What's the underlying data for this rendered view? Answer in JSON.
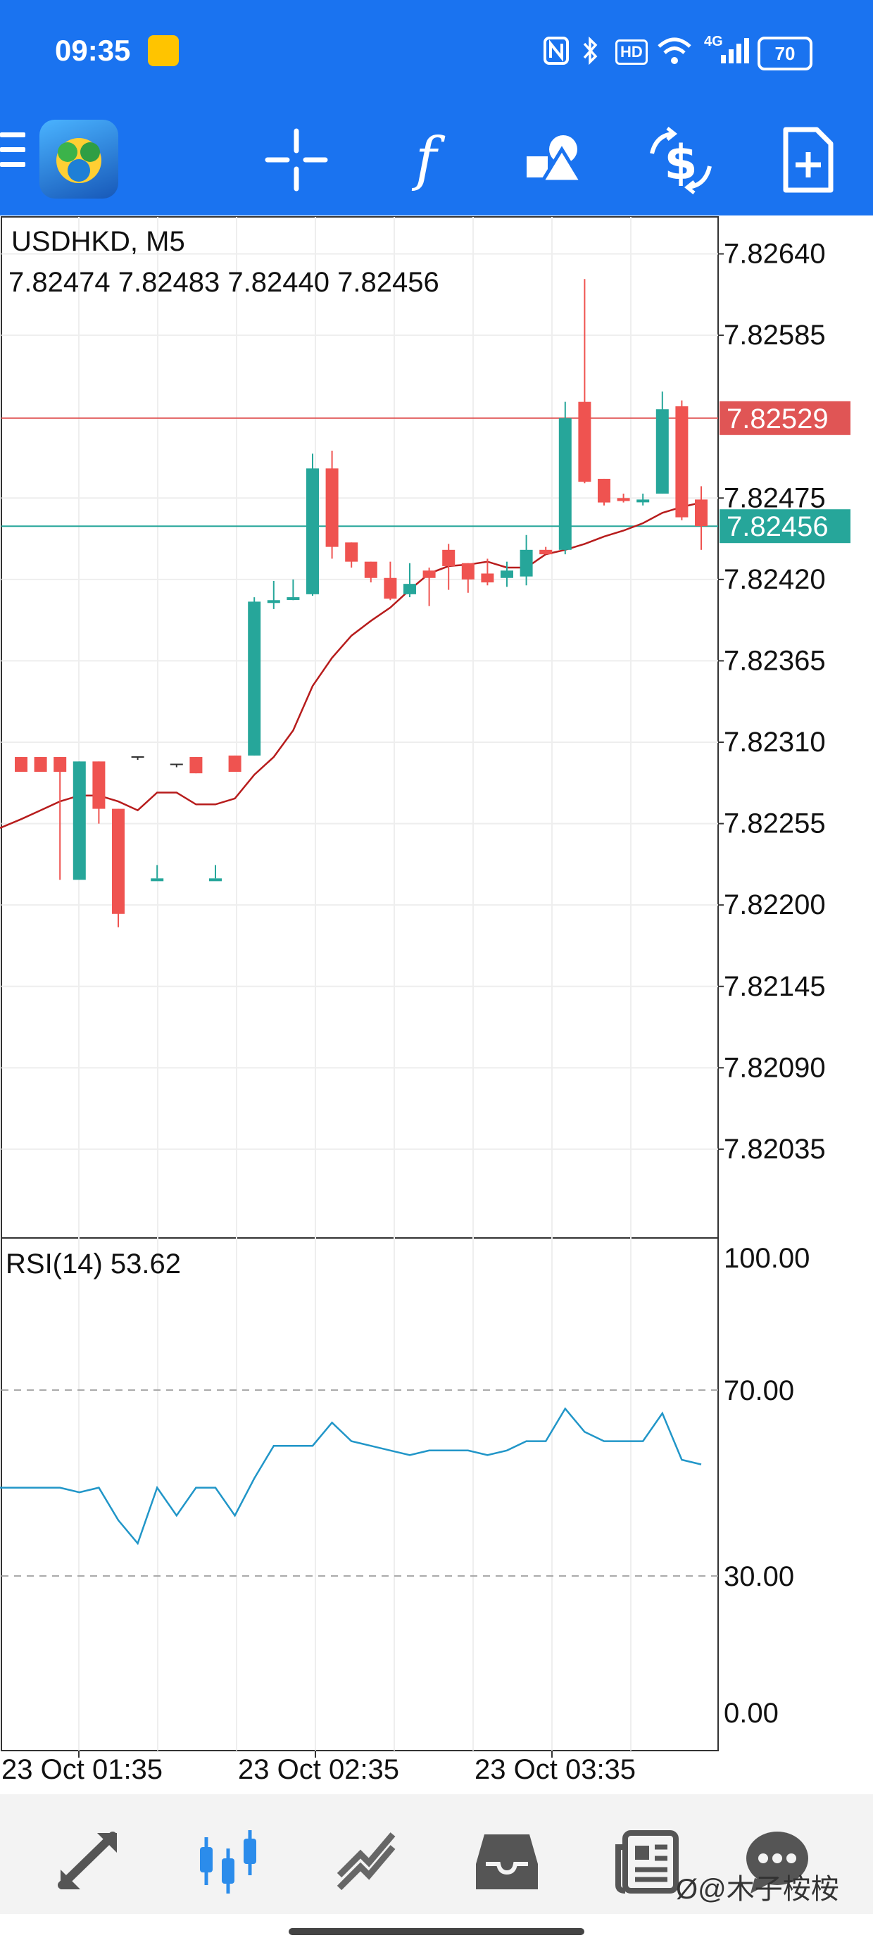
{
  "status_bar": {
    "time": "09:35",
    "icons": [
      "weibo-icon",
      "nfc-icon",
      "bluetooth-icon",
      "hd-icon",
      "wifi-icon",
      "signal-4g-icon",
      "battery-icon"
    ],
    "network": "4G",
    "hd": "HD",
    "battery": "70"
  },
  "toolbar": {
    "icons": [
      "menu-icon",
      "metatrader-logo-icon",
      "crosshair-icon",
      "indicators-icon",
      "objects-icon",
      "trade-icon",
      "new-order-icon"
    ],
    "accent": "#1a73f0"
  },
  "chart": {
    "symbol": "USDHKD, M5",
    "ohlc": "7.82474 7.82483 7.82440 7.82456",
    "price_levels": [
      "7.82640",
      "7.82585",
      "7.82475",
      "7.82420",
      "7.82365",
      "7.82310",
      "7.82255",
      "7.82200",
      "7.82145",
      "7.82090",
      "7.82035"
    ],
    "ask_label": "7.82529",
    "bid_label": "7.82456",
    "ask_color": "#e05555",
    "bid_color": "#26a69a",
    "bull_color": "#26a69a",
    "bear_color": "#ef5350",
    "ma_color": "#b71c1c",
    "rsi_title": "RSI(14) 53.62",
    "rsi_levels": [
      "100.00",
      "70.00",
      "30.00",
      "0.00"
    ],
    "rsi_color": "#2196c8",
    "time_labels": [
      "23 Oct 01:35",
      "23 Oct 02:35",
      "23 Oct 03:35"
    ]
  },
  "chart_data": {
    "type": "candlestick",
    "symbol": "USDHKD",
    "timeframe": "M5",
    "ylim": [
      7.81975,
      7.82665
    ],
    "candles": [
      {
        "o": 7.823,
        "h": 7.823,
        "l": 7.8229,
        "c": 7.8229
      },
      {
        "o": 7.823,
        "h": 7.823,
        "l": 7.8229,
        "c": 7.8229
      },
      {
        "o": 7.823,
        "h": 7.823,
        "l": 7.82217,
        "c": 7.8229
      },
      {
        "o": 7.82217,
        "h": 7.82297,
        "l": 7.82217,
        "c": 7.82297
      },
      {
        "o": 7.82297,
        "h": 7.82297,
        "l": 7.82255,
        "c": 7.82265
      },
      {
        "o": 7.82265,
        "h": 7.82265,
        "l": 7.82185,
        "c": 7.82194
      },
      {
        "o": 7.823,
        "h": 7.823,
        "l": 7.823,
        "c": 7.823
      },
      {
        "o": 7.82218,
        "h": 7.82227,
        "l": 7.82218,
        "c": 7.82218
      },
      {
        "o": 7.82295,
        "h": 7.82295,
        "l": 7.82295,
        "c": 7.82295
      },
      {
        "o": 7.823,
        "h": 7.823,
        "l": 7.82289,
        "c": 7.82289
      },
      {
        "o": 7.82218,
        "h": 7.82227,
        "l": 7.82218,
        "c": 7.82218
      },
      {
        "o": 7.82301,
        "h": 7.82301,
        "l": 7.8229,
        "c": 7.8229
      },
      {
        "o": 7.82301,
        "h": 7.82408,
        "l": 7.82301,
        "c": 7.82405
      },
      {
        "o": 7.82406,
        "h": 7.82419,
        "l": 7.824,
        "c": 7.82406
      },
      {
        "o": 7.82408,
        "h": 7.8242,
        "l": 7.82406,
        "c": 7.82408
      },
      {
        "o": 7.8241,
        "h": 7.82505,
        "l": 7.82409,
        "c": 7.82495
      },
      {
        "o": 7.82495,
        "h": 7.82507,
        "l": 7.82434,
        "c": 7.82442
      },
      {
        "o": 7.82445,
        "h": 7.82445,
        "l": 7.82428,
        "c": 7.82432
      },
      {
        "o": 7.82432,
        "h": 7.82432,
        "l": 7.82418,
        "c": 7.82421
      },
      {
        "o": 7.82421,
        "h": 7.82432,
        "l": 7.82406,
        "c": 7.82407
      },
      {
        "o": 7.8241,
        "h": 7.82431,
        "l": 7.82408,
        "c": 7.82417
      },
      {
        "o": 7.82426,
        "h": 7.82428,
        "l": 7.82402,
        "c": 7.82421
      },
      {
        "o": 7.8244,
        "h": 7.82444,
        "l": 7.82413,
        "c": 7.82429
      },
      {
        "o": 7.82431,
        "h": 7.82431,
        "l": 7.82411,
        "c": 7.8242
      },
      {
        "o": 7.82424,
        "h": 7.82434,
        "l": 7.82416,
        "c": 7.82418
      },
      {
        "o": 7.82421,
        "h": 7.82432,
        "l": 7.82415,
        "c": 7.82426
      },
      {
        "o": 7.82422,
        "h": 7.8245,
        "l": 7.82416,
        "c": 7.8244
      },
      {
        "o": 7.8244,
        "h": 7.82442,
        "l": 7.82437,
        "c": 7.82437
      },
      {
        "o": 7.8244,
        "h": 7.8254,
        "l": 7.82437,
        "c": 7.82529
      },
      {
        "o": 7.8254,
        "h": 7.82623,
        "l": 7.82485,
        "c": 7.82486
      },
      {
        "o": 7.82488,
        "h": 7.82488,
        "l": 7.8247,
        "c": 7.82472
      },
      {
        "o": 7.82475,
        "h": 7.82478,
        "l": 7.82472,
        "c": 7.82473
      },
      {
        "o": 7.82474,
        "h": 7.82478,
        "l": 7.8247,
        "c": 7.82474
      },
      {
        "o": 7.82478,
        "h": 7.82547,
        "l": 7.82478,
        "c": 7.82535
      },
      {
        "o": 7.82537,
        "h": 7.82541,
        "l": 7.8246,
        "c": 7.82462
      },
      {
        "o": 7.82474,
        "h": 7.82483,
        "l": 7.8244,
        "c": 7.82456
      }
    ],
    "ma": [
      7.82258,
      7.82264,
      7.8227,
      7.82274,
      7.82274,
      7.8227,
      7.82264,
      7.82276,
      7.82276,
      7.82268,
      7.82268,
      7.82272,
      7.82288,
      7.823,
      7.82318,
      7.82348,
      7.82367,
      7.82382,
      7.82392,
      7.82401,
      7.82413,
      7.82424,
      7.82429,
      7.8243,
      7.82432,
      7.82428,
      7.82428,
      7.82437,
      7.8244,
      7.82444,
      7.82449,
      7.82453,
      7.82458,
      7.82465,
      7.82469,
      7.82472
    ],
    "ask": 7.82529,
    "bid": 7.82456,
    "rsi": {
      "period": 14,
      "current": 53.62,
      "ylim": [
        0,
        100
      ],
      "levels": [
        70,
        30
      ],
      "values": [
        49,
        49,
        49,
        48,
        49,
        42,
        37,
        49,
        43,
        49,
        49,
        43,
        51,
        58,
        58,
        58,
        63,
        59,
        58,
        57,
        56,
        57,
        57,
        57,
        56,
        57,
        59,
        59,
        66,
        61,
        59,
        59,
        59,
        65,
        55,
        54
      ]
    },
    "x_labels": [
      "23 Oct 01:35",
      "23 Oct 02:35",
      "23 Oct 03:35"
    ]
  }
}
